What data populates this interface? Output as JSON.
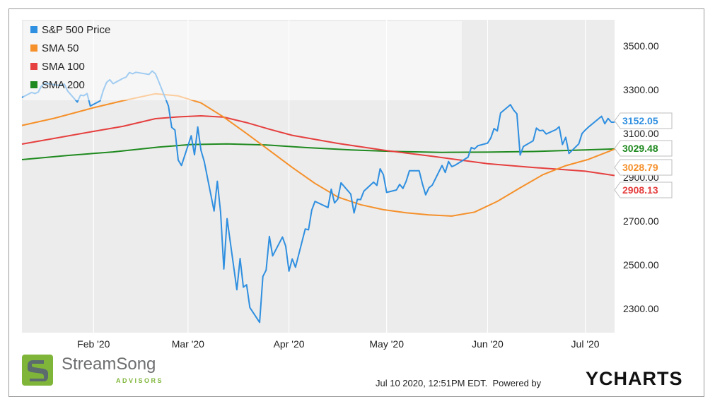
{
  "chart_data": {
    "type": "line",
    "x_axis": {
      "ticks": [
        "Feb '20",
        "Mar '20",
        "Apr '20",
        "May '20",
        "Jun '20",
        "Jul '20"
      ]
    },
    "y_axis": {
      "ticks": [
        "2300.00",
        "2500.00",
        "2700.00",
        "2900.00",
        "3100.00",
        "3300.00",
        "3500.00"
      ],
      "ylim": [
        2190,
        3620
      ],
      "position": "right"
    },
    "grid": {
      "x": true,
      "y": false
    },
    "legend_position": "top-left",
    "series": [
      {
        "name": "S&P 500 Price",
        "color": "#2f8fe0",
        "last_value": "3152.05",
        "points": [
          [
            "2020-01-10",
            3265
          ],
          [
            "2020-01-13",
            3288
          ],
          [
            "2020-01-14",
            3283
          ],
          [
            "2020-01-15",
            3289
          ],
          [
            "2020-01-16",
            3317
          ],
          [
            "2020-01-17",
            3330
          ],
          [
            "2020-01-21",
            3321
          ],
          [
            "2020-01-22",
            3321
          ],
          [
            "2020-01-23",
            3326
          ],
          [
            "2020-01-24",
            3295
          ],
          [
            "2020-01-27",
            3244
          ],
          [
            "2020-01-28",
            3276
          ],
          [
            "2020-01-29",
            3273
          ],
          [
            "2020-01-30",
            3283
          ],
          [
            "2020-01-31",
            3226
          ],
          [
            "2020-02-03",
            3249
          ],
          [
            "2020-02-04",
            3298
          ],
          [
            "2020-02-05",
            3334
          ],
          [
            "2020-02-06",
            3346
          ],
          [
            "2020-02-07",
            3328
          ],
          [
            "2020-02-10",
            3352
          ],
          [
            "2020-02-11",
            3358
          ],
          [
            "2020-02-12",
            3379
          ],
          [
            "2020-02-13",
            3373
          ],
          [
            "2020-02-14",
            3380
          ],
          [
            "2020-02-18",
            3370
          ],
          [
            "2020-02-19",
            3386
          ],
          [
            "2020-02-20",
            3373
          ],
          [
            "2020-02-21",
            3338
          ],
          [
            "2020-02-24",
            3226
          ],
          [
            "2020-02-25",
            3128
          ],
          [
            "2020-02-26",
            3116
          ],
          [
            "2020-02-27",
            2979
          ],
          [
            "2020-02-28",
            2954
          ],
          [
            "2020-03-02",
            3090
          ],
          [
            "2020-03-03",
            3003
          ],
          [
            "2020-03-04",
            3130
          ],
          [
            "2020-03-05",
            3023
          ],
          [
            "2020-03-06",
            2972
          ],
          [
            "2020-03-09",
            2746
          ],
          [
            "2020-03-10",
            2882
          ],
          [
            "2020-03-11",
            2741
          ],
          [
            "2020-03-12",
            2481
          ],
          [
            "2020-03-13",
            2711
          ],
          [
            "2020-03-16",
            2386
          ],
          [
            "2020-03-17",
            2529
          ],
          [
            "2020-03-18",
            2398
          ],
          [
            "2020-03-19",
            2409
          ],
          [
            "2020-03-20",
            2305
          ],
          [
            "2020-03-23",
            2237
          ],
          [
            "2020-03-24",
            2447
          ],
          [
            "2020-03-25",
            2476
          ],
          [
            "2020-03-26",
            2630
          ],
          [
            "2020-03-27",
            2541
          ],
          [
            "2020-03-30",
            2627
          ],
          [
            "2020-03-31",
            2585
          ],
          [
            "2020-04-01",
            2471
          ],
          [
            "2020-04-02",
            2527
          ],
          [
            "2020-04-03",
            2489
          ],
          [
            "2020-04-06",
            2664
          ],
          [
            "2020-04-07",
            2660
          ],
          [
            "2020-04-08",
            2750
          ],
          [
            "2020-04-09",
            2790
          ],
          [
            "2020-04-13",
            2762
          ],
          [
            "2020-04-14",
            2846
          ],
          [
            "2020-04-15",
            2783
          ],
          [
            "2020-04-16",
            2800
          ],
          [
            "2020-04-17",
            2875
          ],
          [
            "2020-04-20",
            2823
          ],
          [
            "2020-04-21",
            2737
          ],
          [
            "2020-04-22",
            2799
          ],
          [
            "2020-04-23",
            2798
          ],
          [
            "2020-04-24",
            2837
          ],
          [
            "2020-04-27",
            2878
          ],
          [
            "2020-04-28",
            2863
          ],
          [
            "2020-04-29",
            2939
          ],
          [
            "2020-04-30",
            2912
          ],
          [
            "2020-05-01",
            2831
          ],
          [
            "2020-05-04",
            2842
          ],
          [
            "2020-05-05",
            2868
          ],
          [
            "2020-05-06",
            2849
          ],
          [
            "2020-05-07",
            2882
          ],
          [
            "2020-05-08",
            2930
          ],
          [
            "2020-05-11",
            2930
          ],
          [
            "2020-05-12",
            2870
          ],
          [
            "2020-05-13",
            2820
          ],
          [
            "2020-05-14",
            2852
          ],
          [
            "2020-05-15",
            2864
          ],
          [
            "2020-05-18",
            2954
          ],
          [
            "2020-05-19",
            2922
          ],
          [
            "2020-05-20",
            2972
          ],
          [
            "2020-05-21",
            2949
          ],
          [
            "2020-05-22",
            2955
          ],
          [
            "2020-05-26",
            2992
          ],
          [
            "2020-05-27",
            3036
          ],
          [
            "2020-05-28",
            3030
          ],
          [
            "2020-05-29",
            3044
          ],
          [
            "2020-06-01",
            3056
          ],
          [
            "2020-06-02",
            3080
          ],
          [
            "2020-06-03",
            3123
          ],
          [
            "2020-06-04",
            3112
          ],
          [
            "2020-06-05",
            3194
          ],
          [
            "2020-06-08",
            3232
          ],
          [
            "2020-06-09",
            3207
          ],
          [
            "2020-06-10",
            3190
          ],
          [
            "2020-06-11",
            3002
          ],
          [
            "2020-06-12",
            3041
          ],
          [
            "2020-06-15",
            3067
          ],
          [
            "2020-06-16",
            3125
          ],
          [
            "2020-06-17",
            3113
          ],
          [
            "2020-06-18",
            3115
          ],
          [
            "2020-06-19",
            3098
          ],
          [
            "2020-06-22",
            3118
          ],
          [
            "2020-06-23",
            3131
          ],
          [
            "2020-06-24",
            3050
          ],
          [
            "2020-06-25",
            3083
          ],
          [
            "2020-06-26",
            3009
          ],
          [
            "2020-06-29",
            3053
          ],
          [
            "2020-06-30",
            3100
          ],
          [
            "2020-07-01",
            3116
          ],
          [
            "2020-07-02",
            3130
          ],
          [
            "2020-07-06",
            3179
          ],
          [
            "2020-07-07",
            3145
          ],
          [
            "2020-07-08",
            3169
          ],
          [
            "2020-07-09",
            3152
          ],
          [
            "2020-07-10",
            3152
          ]
        ]
      },
      {
        "name": "SMA 50",
        "color": "#f5902a",
        "last_value": "3028.79",
        "points": [
          [
            "2020-01-10",
            3137
          ],
          [
            "2020-01-20",
            3170
          ],
          [
            "2020-02-01",
            3218
          ],
          [
            "2020-02-10",
            3250
          ],
          [
            "2020-02-20",
            3282
          ],
          [
            "2020-02-27",
            3272
          ],
          [
            "2020-03-05",
            3240
          ],
          [
            "2020-03-12",
            3175
          ],
          [
            "2020-03-19",
            3100
          ],
          [
            "2020-03-26",
            3023
          ],
          [
            "2020-04-02",
            2945
          ],
          [
            "2020-04-09",
            2872
          ],
          [
            "2020-04-16",
            2810
          ],
          [
            "2020-04-23",
            2775
          ],
          [
            "2020-04-30",
            2752
          ],
          [
            "2020-05-07",
            2738
          ],
          [
            "2020-05-14",
            2728
          ],
          [
            "2020-05-21",
            2723
          ],
          [
            "2020-05-28",
            2741
          ],
          [
            "2020-06-04",
            2790
          ],
          [
            "2020-06-11",
            2852
          ],
          [
            "2020-06-18",
            2912
          ],
          [
            "2020-06-25",
            2953
          ],
          [
            "2020-07-02",
            2982
          ],
          [
            "2020-07-10",
            3028.79
          ]
        ]
      },
      {
        "name": "SMA 100",
        "color": "#e5403f",
        "last_value": "2908.13",
        "points": [
          [
            "2020-01-10",
            3052
          ],
          [
            "2020-01-20",
            3078
          ],
          [
            "2020-02-01",
            3110
          ],
          [
            "2020-02-10",
            3133
          ],
          [
            "2020-02-20",
            3168
          ],
          [
            "2020-02-27",
            3176
          ],
          [
            "2020-03-05",
            3181
          ],
          [
            "2020-03-12",
            3175
          ],
          [
            "2020-03-19",
            3150
          ],
          [
            "2020-03-26",
            3120
          ],
          [
            "2020-04-02",
            3092
          ],
          [
            "2020-04-16",
            3055
          ],
          [
            "2020-05-01",
            3022
          ],
          [
            "2020-05-15",
            2996
          ],
          [
            "2020-06-01",
            2962
          ],
          [
            "2020-06-15",
            2945
          ],
          [
            "2020-07-01",
            2928
          ],
          [
            "2020-07-10",
            2908.13
          ]
        ]
      },
      {
        "name": "SMA 200",
        "color": "#1f8a1f",
        "last_value": "3029.48",
        "points": [
          [
            "2020-01-10",
            2981
          ],
          [
            "2020-01-24",
            3000
          ],
          [
            "2020-02-07",
            3016
          ],
          [
            "2020-02-21",
            3038
          ],
          [
            "2020-03-02",
            3050
          ],
          [
            "2020-03-13",
            3053
          ],
          [
            "2020-03-25",
            3048
          ],
          [
            "2020-04-06",
            3036
          ],
          [
            "2020-04-20",
            3025
          ],
          [
            "2020-05-04",
            3018
          ],
          [
            "2020-05-18",
            3014
          ],
          [
            "2020-06-01",
            3015
          ],
          [
            "2020-06-15",
            3018
          ],
          [
            "2020-07-01",
            3025
          ],
          [
            "2020-07-10",
            3029.48
          ]
        ]
      }
    ]
  },
  "legend": [
    {
      "label": "S&P 500 Price",
      "color": "#2f8fe0"
    },
    {
      "label": "SMA 50",
      "color": "#f5902a"
    },
    {
      "label": "SMA 100",
      "color": "#e5403f"
    },
    {
      "label": "SMA 200",
      "color": "#1f8a1f"
    }
  ],
  "footer": {
    "timestamp": "Jul 10 2020, 12:51PM EDT.",
    "powered_by": "Powered by",
    "brand": "YCHARTS",
    "logo_name": "StreamSong",
    "logo_sub": "ADVISORS"
  }
}
